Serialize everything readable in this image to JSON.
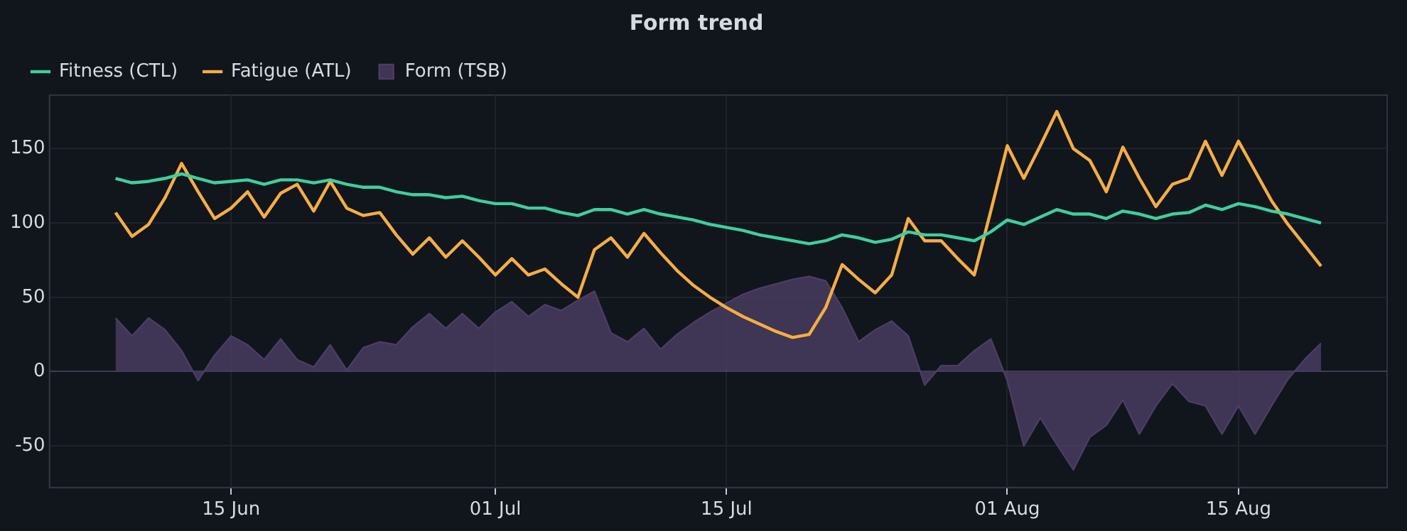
{
  "chart_data": {
    "type": "line",
    "title": "Form trend",
    "x": [
      "--06-08",
      "--06-09",
      "--06-10",
      "--06-11",
      "--06-12",
      "--06-13",
      "--06-14",
      "--06-15",
      "--06-16",
      "--06-17",
      "--06-18",
      "--06-19",
      "--06-20",
      "--06-21",
      "--06-22",
      "--06-23",
      "--06-24",
      "--06-25",
      "--06-26",
      "--06-27",
      "--06-28",
      "--06-29",
      "--06-30",
      "--07-01",
      "--07-02",
      "--07-03",
      "--07-04",
      "--07-05",
      "--07-06",
      "--07-07",
      "--07-08",
      "--07-09",
      "--07-10",
      "--07-11",
      "--07-12",
      "--07-13",
      "--07-14",
      "--07-15",
      "--07-16",
      "--07-17",
      "--07-18",
      "--07-19",
      "--07-20",
      "--07-21",
      "--07-22",
      "--07-23",
      "--07-24",
      "--07-25",
      "--07-26",
      "--07-27",
      "--07-28",
      "--07-29",
      "--07-30",
      "--07-31",
      "--08-01",
      "--08-02",
      "--08-03",
      "--08-04",
      "--08-05",
      "--08-06",
      "--08-07",
      "--08-08",
      "--08-09",
      "--08-10",
      "--08-11",
      "--08-12",
      "--08-13",
      "--08-14",
      "--08-15",
      "--08-16",
      "--08-17",
      "--08-18",
      "--08-19",
      "--08-20"
    ],
    "series": [
      {
        "name": "Fitness (CTL)",
        "type": "line",
        "color": "#3ecf9e",
        "values": [
          130,
          127,
          128,
          130,
          133,
          130,
          127,
          128,
          129,
          126,
          129,
          129,
          127,
          129,
          126,
          124,
          124,
          121,
          119,
          119,
          117,
          118,
          115,
          113,
          113,
          110,
          110,
          107,
          105,
          109,
          109,
          106,
          109,
          106,
          104,
          102,
          99,
          97,
          95,
          92,
          90,
          88,
          86,
          88,
          92,
          90,
          87,
          89,
          94,
          92,
          92,
          90,
          88,
          94,
          102,
          99,
          104,
          109,
          106,
          106,
          103,
          108,
          106,
          103,
          106,
          107,
          112,
          109,
          113,
          111,
          108,
          106,
          103,
          100
        ]
      },
      {
        "name": "Fatigue (ATL)",
        "type": "line",
        "color": "#f5ad42",
        "values": [
          107,
          91,
          99,
          117,
          140,
          121,
          103,
          110,
          121,
          104,
          120,
          126,
          108,
          128,
          110,
          105,
          107,
          92,
          79,
          90,
          77,
          88,
          77,
          65,
          76,
          65,
          69,
          59,
          50,
          82,
          90,
          77,
          93,
          80,
          68,
          58,
          50,
          43,
          37,
          32,
          27,
          23,
          25,
          43,
          72,
          62,
          53,
          65,
          103,
          88,
          88,
          76,
          65,
          108,
          152,
          130,
          152,
          175,
          150,
          142,
          121,
          151,
          130,
          111,
          126,
          130,
          155,
          132,
          155,
          135,
          115,
          99,
          85,
          71
        ]
      },
      {
        "name": "Form (TSB)",
        "type": "area",
        "color": "#4b3d63",
        "values": [
          36,
          24,
          36,
          28,
          14,
          -6,
          11,
          24,
          18,
          8,
          22,
          8,
          3,
          18,
          1,
          16,
          20,
          18,
          30,
          39,
          29,
          39,
          29,
          40,
          47,
          37,
          45,
          41,
          48,
          54,
          26,
          20,
          29,
          15,
          25,
          33,
          40,
          46,
          52,
          56,
          59,
          62,
          64,
          61,
          43,
          20,
          28,
          34,
          24,
          -9,
          4,
          4,
          14,
          22,
          -6,
          -50,
          -31,
          -49,
          -66,
          -44,
          -36,
          -19,
          -42,
          -23,
          -8,
          -20,
          -23,
          -42,
          -23,
          -42,
          -23,
          -5,
          8,
          19
        ]
      }
    ],
    "xlim": [
      "--06-04",
      "--08-24"
    ],
    "xticks": [
      {
        "value": "--06-15",
        "label": "15 Jun"
      },
      {
        "value": "--07-01",
        "label": "01 Jul"
      },
      {
        "value": "--07-15",
        "label": "15 Jul"
      },
      {
        "value": "--08-01",
        "label": "01 Aug"
      },
      {
        "value": "--08-15",
        "label": "15 Aug"
      }
    ],
    "ylim": [
      -78,
      186
    ],
    "yticks": [
      -50,
      0,
      50,
      100,
      150
    ],
    "grid": true,
    "legend": "top left",
    "marker": "none",
    "line_style": "solid"
  }
}
